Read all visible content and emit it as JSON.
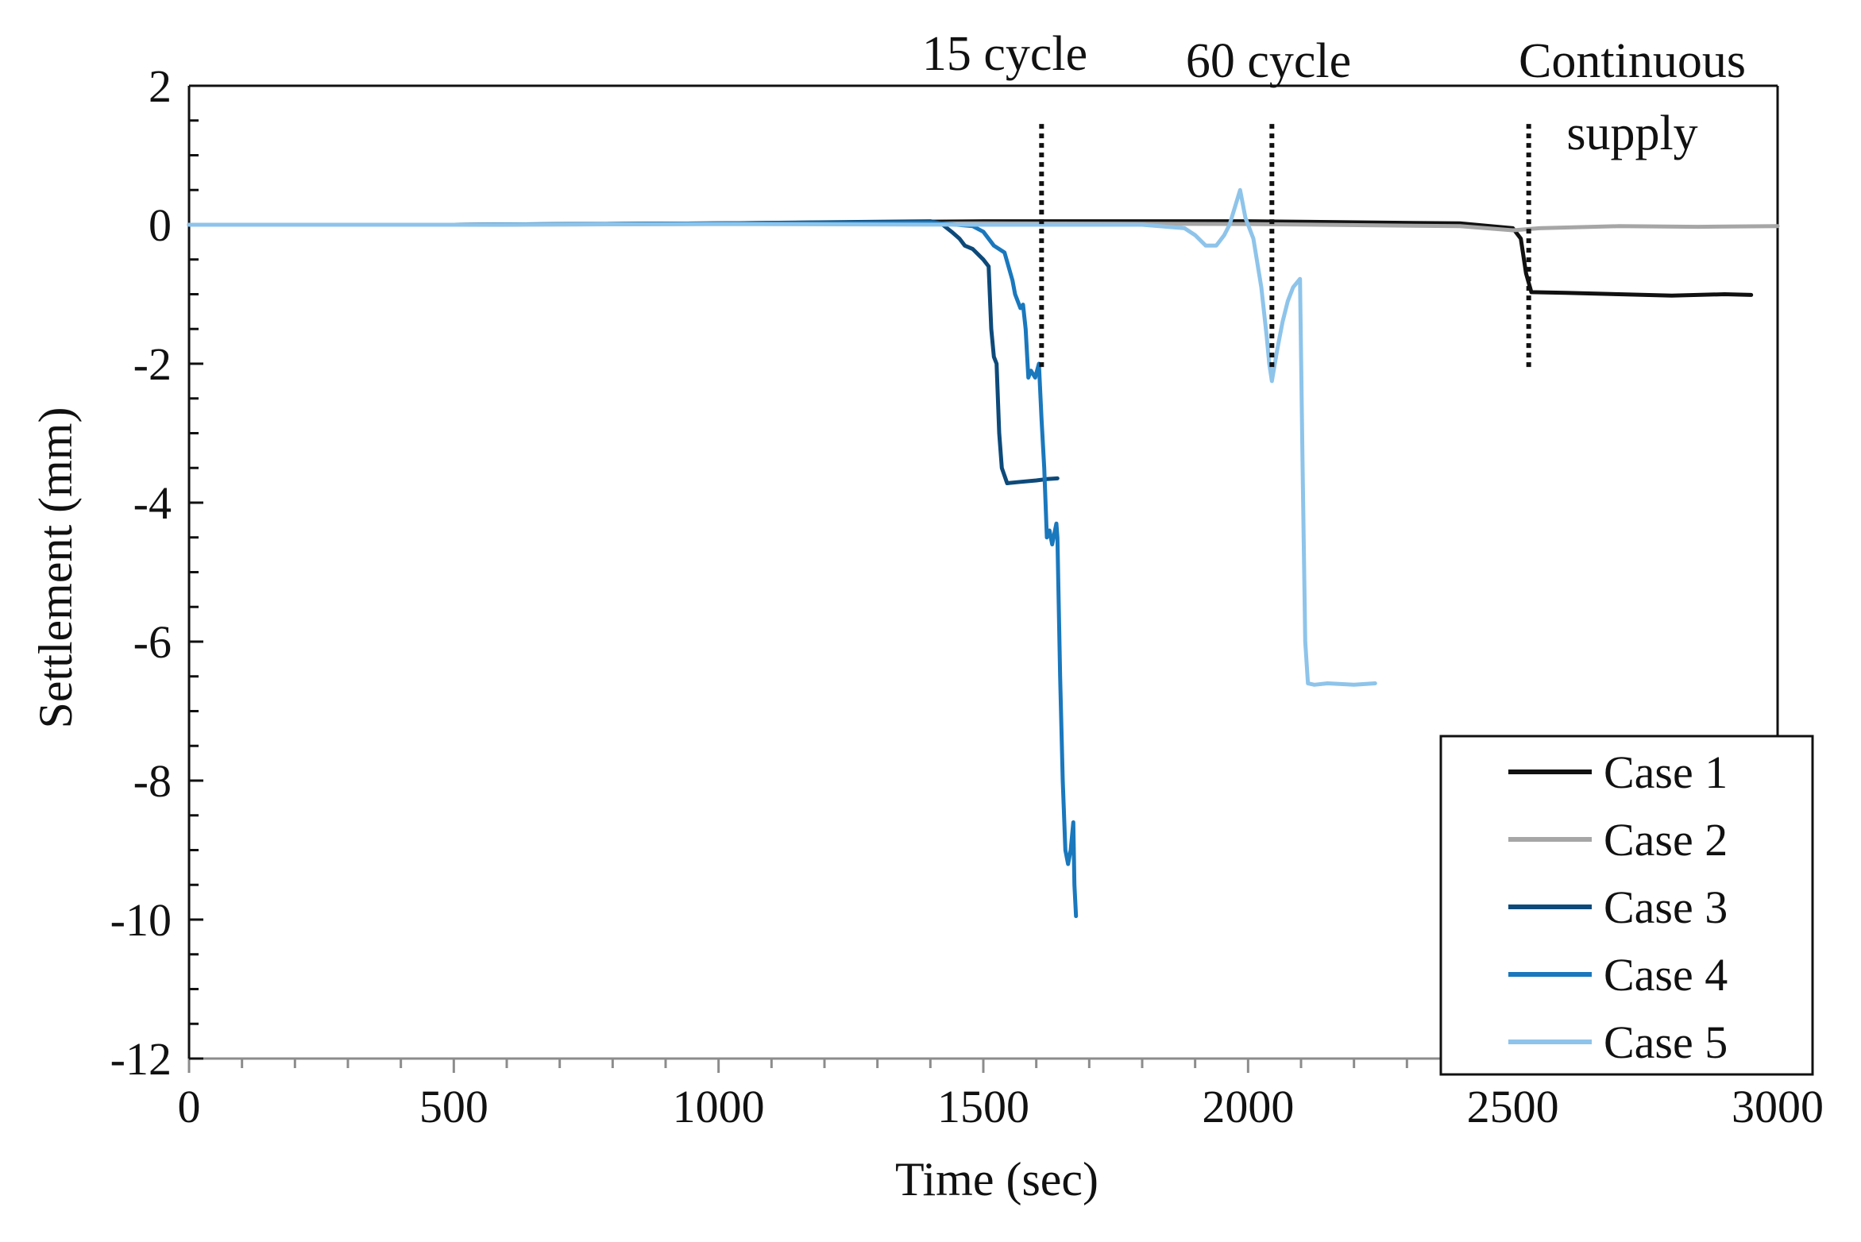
{
  "chart_data": {
    "type": "line",
    "title": "",
    "xlabel": "Time (sec)",
    "ylabel": "Settlement (mm)",
    "xlim": [
      0,
      3000
    ],
    "ylim": [
      -12,
      2
    ],
    "xticks": [
      0,
      500,
      1000,
      1500,
      2000,
      2500,
      3000
    ],
    "yticks": [
      2,
      0,
      -2,
      -4,
      -6,
      -8,
      -10,
      -12
    ],
    "grid": false,
    "legend_position": "bottom-right",
    "annotations": [
      {
        "id": "15-cycle",
        "text_lines": [
          "15 cycle"
        ],
        "x": 1610,
        "y_from": 1.45,
        "y_to": -2.1
      },
      {
        "id": "60-cycle",
        "text_lines": [
          "60 cycle"
        ],
        "x": 2045,
        "y_from": 1.45,
        "y_to": -2.1
      },
      {
        "id": "continuous",
        "text_lines": [
          "Continuous",
          "supply"
        ],
        "x": 2530,
        "y_from": 1.45,
        "y_to": -2.1
      }
    ],
    "series": [
      {
        "name": "Case 1",
        "color": "#111111",
        "x": [
          0,
          500,
          1000,
          1500,
          2000,
          2400,
          2500,
          2515,
          2525,
          2535,
          2600,
          2700,
          2800,
          2900,
          2950
        ],
        "y": [
          0,
          0,
          0.02,
          0.05,
          0.05,
          0.02,
          -0.05,
          -0.2,
          -0.7,
          -0.97,
          -0.98,
          -1.0,
          -1.02,
          -1.0,
          -1.01
        ]
      },
      {
        "name": "Case 2",
        "color": "#a6a6a6",
        "x": [
          0,
          500,
          1000,
          1500,
          2000,
          2400,
          2450,
          2500,
          2550,
          2700,
          2850,
          3000
        ],
        "y": [
          0,
          0,
          0.01,
          0.02,
          0.01,
          -0.02,
          -0.05,
          -0.08,
          -0.05,
          -0.02,
          -0.03,
          -0.02
        ]
      },
      {
        "name": "Case 3",
        "color": "#0d4a7a",
        "x": [
          0,
          500,
          1000,
          1400,
          1420,
          1440,
          1455,
          1465,
          1480,
          1500,
          1510,
          1515,
          1520,
          1525,
          1530,
          1535,
          1545,
          1570,
          1600,
          1620,
          1640
        ],
        "y": [
          0,
          0,
          0.02,
          0.05,
          0.02,
          -0.1,
          -0.2,
          -0.3,
          -0.35,
          -0.5,
          -0.6,
          -1.5,
          -1.9,
          -2.0,
          -3.0,
          -3.5,
          -3.72,
          -3.7,
          -3.68,
          -3.66,
          -3.65
        ]
      },
      {
        "name": "Case 4",
        "color": "#1a78bd",
        "x": [
          0,
          500,
          1000,
          1400,
          1450,
          1480,
          1500,
          1520,
          1540,
          1555,
          1560,
          1570,
          1575,
          1580,
          1585,
          1590,
          1598,
          1605,
          1610,
          1615,
          1620,
          1625,
          1630,
          1638,
          1640,
          1645,
          1650,
          1655,
          1660,
          1665,
          1670,
          1672,
          1675
        ],
        "y": [
          0,
          0,
          0.02,
          0.03,
          0.0,
          -0.02,
          -0.1,
          -0.3,
          -0.4,
          -0.8,
          -1.0,
          -1.2,
          -1.15,
          -1.5,
          -2.2,
          -2.1,
          -2.2,
          -2.0,
          -2.8,
          -3.5,
          -4.5,
          -4.4,
          -4.6,
          -4.3,
          -4.5,
          -6.5,
          -8.0,
          -9.0,
          -9.2,
          -9.0,
          -8.6,
          -9.5,
          -9.95
        ]
      },
      {
        "name": "Case 5",
        "color": "#8ec4ea",
        "x": [
          0,
          500,
          1000,
          1500,
          1800,
          1880,
          1900,
          1920,
          1940,
          1955,
          1965,
          1975,
          1985,
          1995,
          2010,
          2025,
          2035,
          2040,
          2045,
          2055,
          2065,
          2075,
          2085,
          2098,
          2103,
          2108,
          2113,
          2125,
          2150,
          2200,
          2240
        ],
        "y": [
          0,
          0,
          0.01,
          0.0,
          0.0,
          -0.05,
          -0.15,
          -0.3,
          -0.3,
          -0.15,
          0.0,
          0.25,
          0.5,
          0.1,
          -0.2,
          -0.9,
          -1.6,
          -2.0,
          -2.25,
          -1.8,
          -1.4,
          -1.1,
          -0.9,
          -0.78,
          -3.5,
          -6.0,
          -6.6,
          -6.62,
          -6.6,
          -6.62,
          -6.6
        ]
      }
    ]
  }
}
